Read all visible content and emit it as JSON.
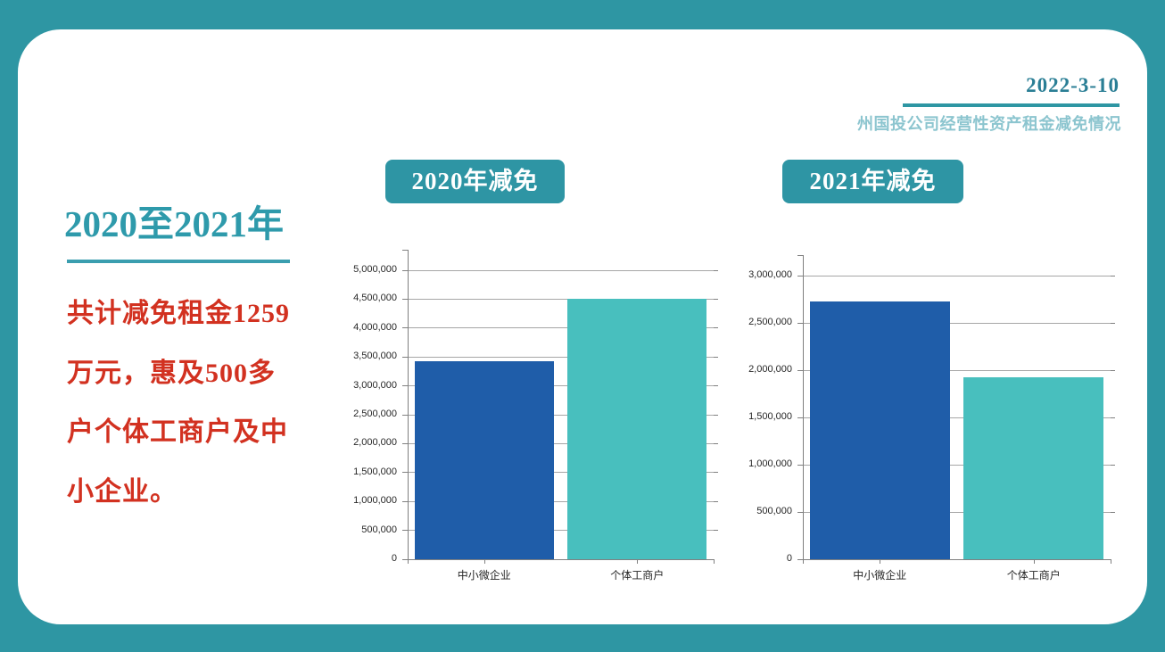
{
  "page": {
    "date": "2022-3-10",
    "subtitle": "州国投公司经营性资产租金减免情况"
  },
  "intro": {
    "title": "2020至2021年",
    "lines": [
      "共计减免租金1259",
      "万元，惠及500多",
      "户个体工商户及中",
      "小企业。"
    ]
  },
  "colors": {
    "frame_teal": "#2E96A3",
    "badge_teal": "#2E95A4",
    "title_teal": "#2E9AAB",
    "divider_teal": "#3A9EAF",
    "subtitle_teal": "#8CC5CF",
    "date_teal": "#2A7E95",
    "accent_red": "#D23120",
    "bar_blue": "#1F5DA9",
    "bar_teal": "#48BFBE",
    "gridline_gray": "#A6A6A6",
    "axis_gray": "#808080"
  },
  "chart_data": [
    {
      "type": "bar",
      "title": "2020年减免",
      "categories": [
        "中小微企业",
        "个体工商户"
      ],
      "values": [
        3430000,
        4510000
      ],
      "bar_colors": [
        "#1F5DA9",
        "#48BFBE"
      ],
      "ylim": [
        0,
        5000000
      ],
      "ytick_step": 500000,
      "ytick_labels": [
        "0",
        "500,000",
        "1,000,000",
        "1,500,000",
        "2,000,000",
        "2,500,000",
        "3,000,000",
        "3,500,000",
        "4,000,000",
        "4,500,000",
        "5,000,000"
      ],
      "xlabel": "",
      "ylabel": "",
      "grid": true,
      "legend": "none"
    },
    {
      "type": "bar",
      "title": "2021年减免",
      "categories": [
        "中小微企业",
        "个体工商户"
      ],
      "values": [
        2730000,
        1920000
      ],
      "bar_colors": [
        "#1F5DA9",
        "#48BFBE"
      ],
      "ylim": [
        0,
        3000000
      ],
      "ytick_step": 500000,
      "ytick_labels": [
        "0",
        "500,000",
        "1,000,000",
        "1,500,000",
        "2,000,000",
        "2,500,000",
        "3,000,000"
      ],
      "xlabel": "",
      "ylabel": "",
      "grid": true,
      "legend": "none"
    }
  ]
}
